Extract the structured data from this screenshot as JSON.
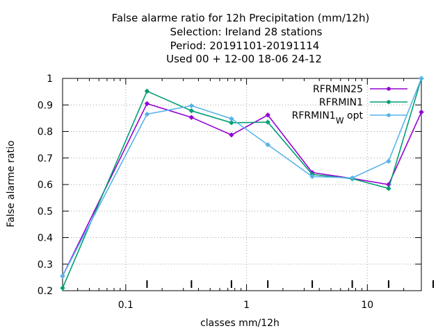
{
  "chart_data": {
    "type": "line",
    "title_lines": [
      "False alarme ratio  for 12h Precipitation (mm/12h)",
      "Selection: Ireland      28 stations",
      "Period: 20191101-20191114",
      "Used  00 + 12-00 18-06 24-12"
    ],
    "xlabel": "classes mm/12h",
    "ylabel": "False alarme ratio",
    "x_scale": "log",
    "xlim": [
      0.03,
      28
    ],
    "ylim": [
      0.2,
      1.0
    ],
    "x_ticks": [
      {
        "value": 0.1,
        "label": "0.1"
      },
      {
        "value": 1,
        "label": "1"
      },
      {
        "value": 10,
        "label": "10"
      }
    ],
    "y_ticks": [
      {
        "value": 0.2,
        "label": "0.2"
      },
      {
        "value": 0.3,
        "label": "0.3"
      },
      {
        "value": 0.4,
        "label": "0.4"
      },
      {
        "value": 0.5,
        "label": "0.5"
      },
      {
        "value": 0.6,
        "label": "0.6"
      },
      {
        "value": 0.7,
        "label": "0.7"
      },
      {
        "value": 0.8,
        "label": "0.8"
      },
      {
        "value": 0.9,
        "label": "0.9"
      },
      {
        "value": 1.0,
        "label": "1"
      }
    ],
    "grid": true,
    "legend_position": "top-right",
    "x": [
      0.03,
      0.15,
      0.35,
      0.75,
      1.5,
      3.5,
      7.5,
      15,
      28
    ],
    "series": [
      {
        "name": "RFRMIN25",
        "color": "#9400d3",
        "values": [
          0.255,
          0.905,
          0.853,
          0.787,
          0.862,
          0.645,
          0.623,
          0.6,
          0.873
        ]
      },
      {
        "name": "RFRMIN1",
        "color": "#009e73",
        "values": [
          0.21,
          0.952,
          0.878,
          0.833,
          0.835,
          0.638,
          0.622,
          0.585,
          1.0
        ]
      },
      {
        "name": "RFRMIN1",
        "name_subscript": "W",
        "name_suffix": "opt",
        "color": "#56b4e9",
        "values": [
          0.255,
          0.865,
          0.897,
          0.848,
          0.75,
          0.63,
          0.625,
          0.688,
          1.0
        ]
      }
    ]
  }
}
